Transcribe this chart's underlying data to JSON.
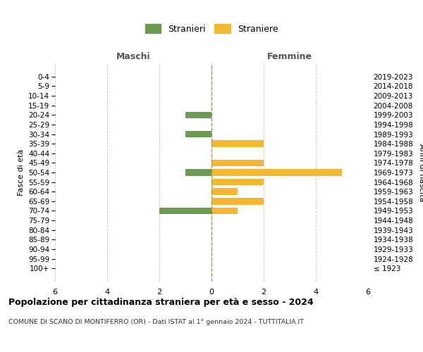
{
  "age_groups": [
    "100+",
    "95-99",
    "90-94",
    "85-89",
    "80-84",
    "75-79",
    "70-74",
    "65-69",
    "60-64",
    "55-59",
    "50-54",
    "45-49",
    "40-44",
    "35-39",
    "30-34",
    "25-29",
    "20-24",
    "15-19",
    "10-14",
    "5-9",
    "0-4"
  ],
  "birth_years": [
    "≤ 1923",
    "1924-1928",
    "1929-1933",
    "1934-1938",
    "1939-1943",
    "1944-1948",
    "1949-1953",
    "1954-1958",
    "1959-1963",
    "1964-1968",
    "1969-1973",
    "1974-1978",
    "1979-1983",
    "1984-1988",
    "1989-1993",
    "1994-1998",
    "1999-2003",
    "2004-2008",
    "2009-2013",
    "2014-2018",
    "2019-2023"
  ],
  "maschi": [
    0,
    0,
    0,
    0,
    0,
    0,
    2,
    0,
    0,
    0,
    1,
    0,
    0,
    0,
    1,
    0,
    1,
    0,
    0,
    0,
    0
  ],
  "femmine": [
    0,
    0,
    0,
    0,
    0,
    0,
    1,
    2,
    1,
    2,
    5,
    2,
    0,
    2,
    0,
    0,
    0,
    0,
    0,
    0,
    0
  ],
  "color_maschi": "#6a9a52",
  "color_femmine": "#f5b731",
  "background_color": "#ffffff",
  "grid_color": "#cccccc",
  "center_line_color": "#999966",
  "title": "Popolazione per cittadinanza straniera per età e sesso - 2024",
  "subtitle": "COMUNE DI SCANO DI MONTIFERRO (OR) - Dati ISTAT al 1° gennaio 2024 - TUTTITALIA.IT",
  "left_label": "Maschi",
  "right_label": "Femmine",
  "ylabel_left": "Fasce di età",
  "ylabel_right": "Anni di nascita",
  "legend_maschi": "Stranieri",
  "legend_femmine": "Straniere",
  "xlim": 6,
  "bar_height": 0.7
}
